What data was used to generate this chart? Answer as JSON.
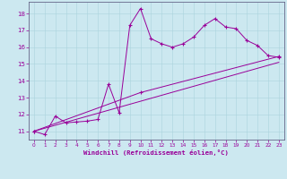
{
  "xlabel": "Windchill (Refroidissement éolien,°C)",
  "bg_color": "#cce8f0",
  "line_color": "#990099",
  "grid_color": "#aad4dd",
  "xlim": [
    -0.5,
    23.5
  ],
  "ylim": [
    10.5,
    18.7
  ],
  "xticks": [
    0,
    1,
    2,
    3,
    4,
    5,
    6,
    7,
    8,
    9,
    10,
    11,
    12,
    13,
    14,
    15,
    16,
    17,
    18,
    19,
    20,
    21,
    22,
    23
  ],
  "yticks": [
    11,
    12,
    13,
    14,
    15,
    16,
    17,
    18
  ],
  "line1_x": [
    0,
    1,
    2,
    3,
    4,
    5,
    6,
    7,
    8,
    9,
    10,
    11,
    12,
    13,
    14,
    15,
    16,
    17,
    18,
    19,
    20,
    21,
    22,
    23
  ],
  "line1_y": [
    11.0,
    10.8,
    11.9,
    11.5,
    11.55,
    11.6,
    11.7,
    13.8,
    12.1,
    17.3,
    18.3,
    16.5,
    16.2,
    16.0,
    16.2,
    16.6,
    17.3,
    17.7,
    17.2,
    17.1,
    16.4,
    16.1,
    15.5,
    15.4
  ],
  "line2_x": [
    0,
    10,
    23
  ],
  "line2_y": [
    11.0,
    13.3,
    15.45
  ],
  "line3_x": [
    0,
    23
  ],
  "line3_y": [
    11.0,
    15.1
  ]
}
